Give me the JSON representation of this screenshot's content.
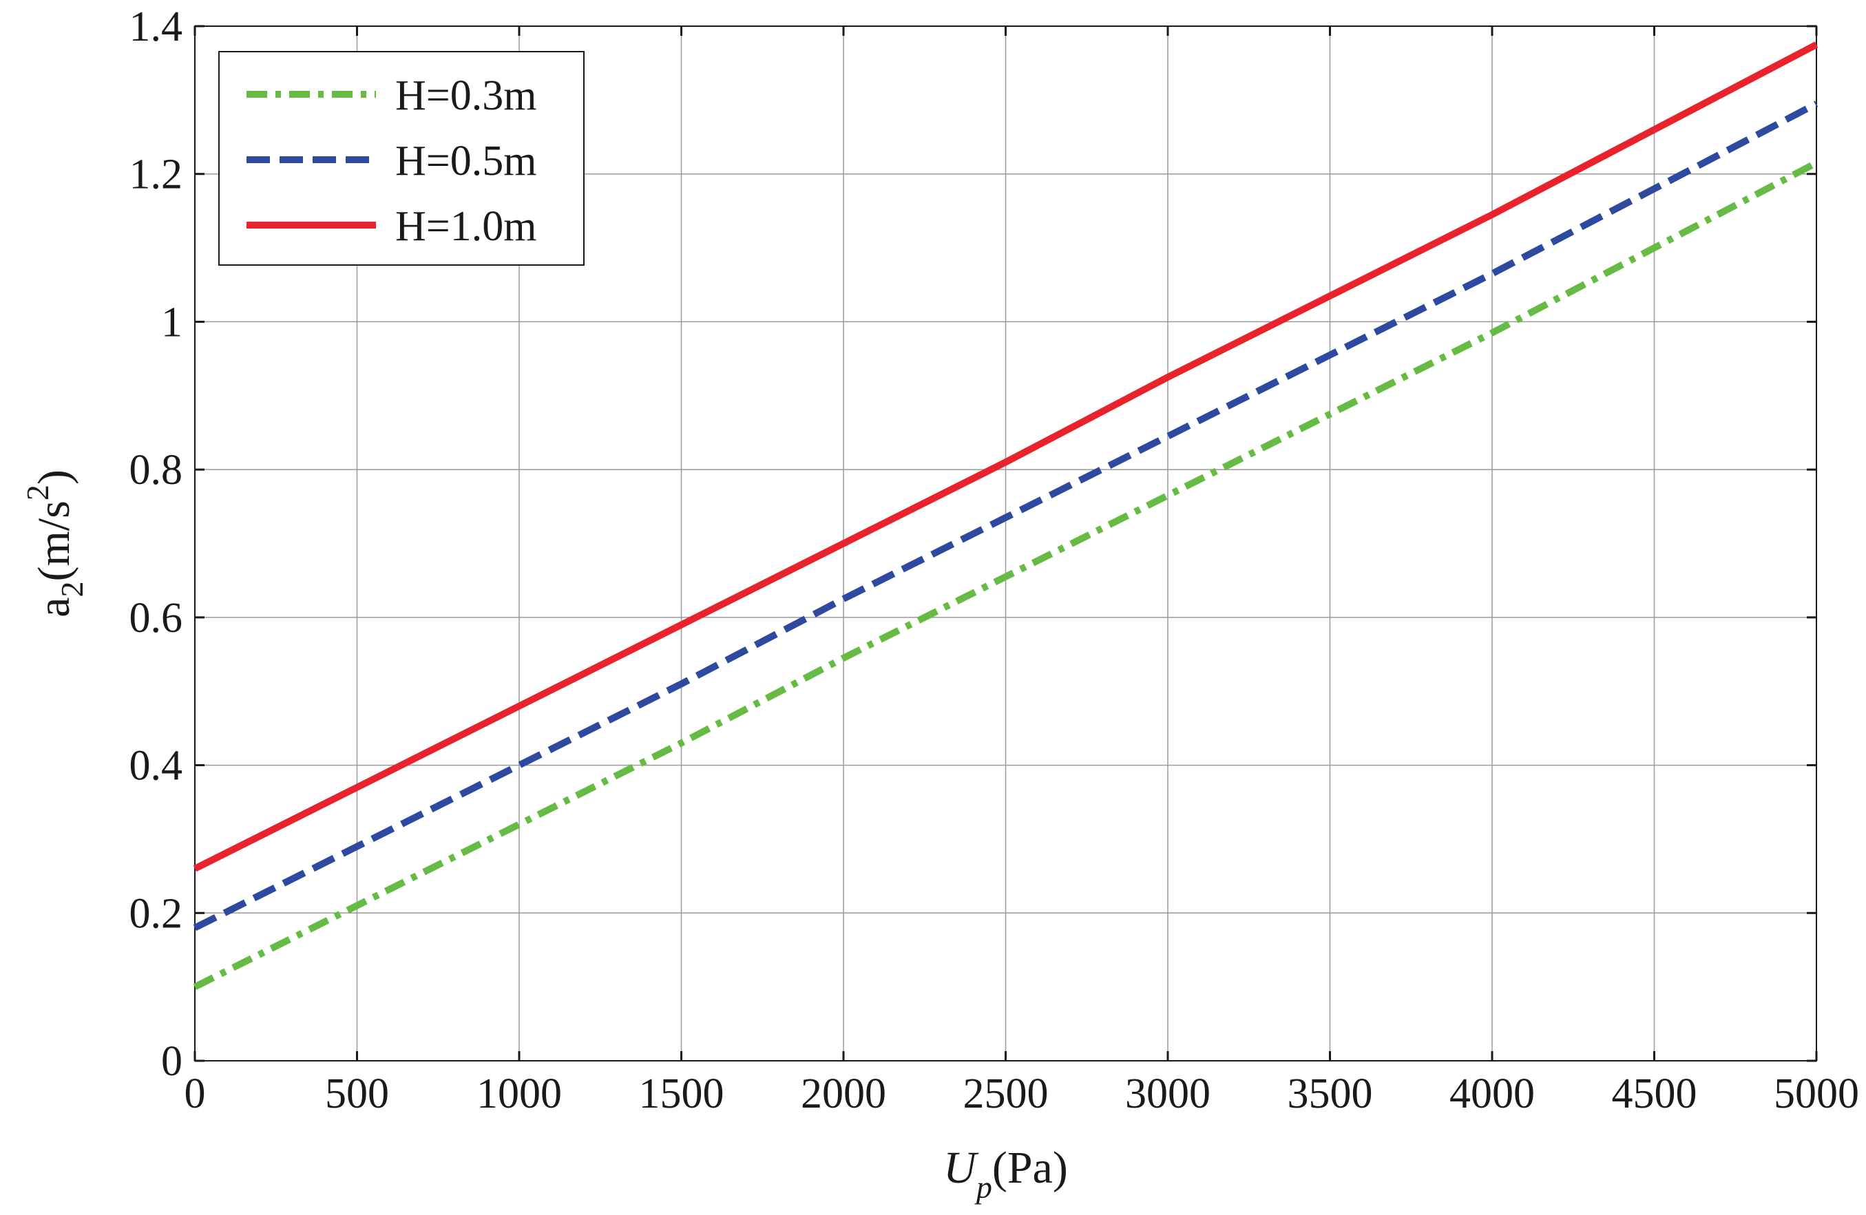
{
  "chart_data": {
    "type": "line",
    "xlabel": {
      "main": "U",
      "sub": "p",
      "rest": "(Pa)"
    },
    "ylabel": {
      "main": "a",
      "sub": "2",
      "rest": "(m/s",
      "sup": "2",
      "close": ")"
    },
    "xlim": [
      0,
      5000
    ],
    "ylim": [
      0,
      1.4
    ],
    "xticks": [
      0,
      500,
      1000,
      1500,
      2000,
      2500,
      3000,
      3500,
      4000,
      4500,
      5000
    ],
    "yticks": [
      0,
      0.2,
      0.4,
      0.6,
      0.8,
      1,
      1.2,
      1.4
    ],
    "ytick_labels": [
      "0",
      "0.2",
      "0.4",
      "0.6",
      "0.8",
      "1",
      "1.2",
      "1.4"
    ],
    "grid": true,
    "legend_position": "top-left",
    "x": [
      0,
      500,
      1000,
      1500,
      2000,
      2500,
      3000,
      3500,
      4000,
      4500,
      5000
    ],
    "series": [
      {
        "name": "H=0.3m",
        "color": "#66bb44",
        "style": "dashdot",
        "values": [
          0.1,
          0.21,
          0.32,
          0.43,
          0.545,
          0.655,
          0.765,
          0.875,
          0.985,
          1.1,
          1.215
        ]
      },
      {
        "name": "H=0.5m",
        "color": "#2e4aa0",
        "style": "dashed",
        "values": [
          0.18,
          0.29,
          0.4,
          0.51,
          0.625,
          0.735,
          0.845,
          0.955,
          1.065,
          1.18,
          1.295
        ]
      },
      {
        "name": "H=1.0m",
        "color": "#e8232b",
        "style": "solid",
        "values": [
          0.26,
          0.37,
          0.48,
          0.59,
          0.7,
          0.81,
          0.925,
          1.035,
          1.145,
          1.26,
          1.375
        ]
      }
    ]
  }
}
